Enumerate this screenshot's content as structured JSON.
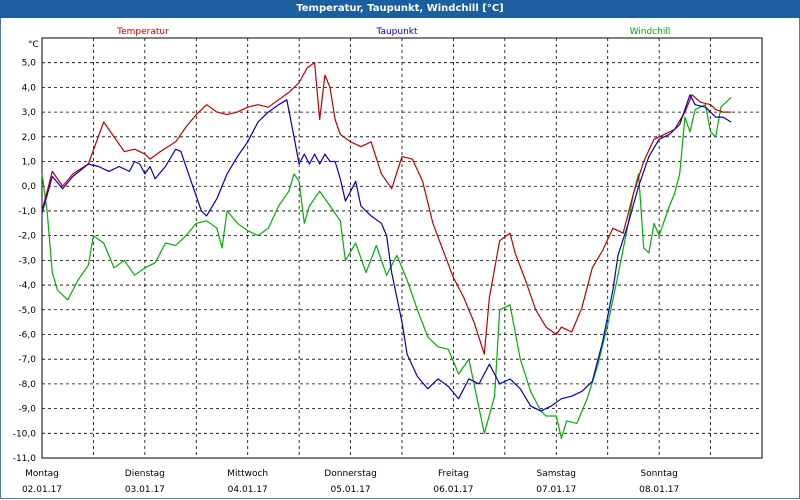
{
  "window": {
    "title": "Temperatur, Taupunkt, Windchill [°C]"
  },
  "colors": {
    "title_bar": "#1c5fa0",
    "temperatur": "#c00000",
    "taupunkt": "#0000c0",
    "windchill": "#00b000"
  },
  "chart_data": {
    "type": "line",
    "title": "Temperatur, Taupunkt, Windchill [°C]",
    "ylabel": "°C",
    "ylim": [
      -11,
      6
    ],
    "yticks": [
      5,
      4,
      3,
      2,
      1,
      0,
      -1,
      -2,
      -3,
      -4,
      -5,
      -6,
      -7,
      -8,
      -9,
      -10,
      -11
    ],
    "ytick_labels": [
      "5,0",
      "4,0",
      "3,0",
      "2,0",
      "1,0",
      "0,0",
      "-1,0",
      "-2,0",
      "-3,0",
      "-4,0",
      "-5,0",
      "-6,0",
      "-7,0",
      "-8,0",
      "-9,0",
      "-10,0",
      "-11,0"
    ],
    "xlim": [
      0,
      7
    ],
    "x_unit": "days since 02.01.17 00:00",
    "day_labels": [
      {
        "day": "Montag",
        "date": "02.01.17"
      },
      {
        "day": "Dienstag",
        "date": "03.01.17"
      },
      {
        "day": "Mittwoch",
        "date": "04.01.17"
      },
      {
        "day": "Donnerstag",
        "date": "05.01.17"
      },
      {
        "day": "Freitag",
        "date": "06.01.17"
      },
      {
        "day": "Samstag",
        "date": "07.01.17"
      },
      {
        "day": "Sonntag",
        "date": "08.01.17"
      }
    ],
    "grid": true,
    "series": [
      {
        "name": "Temperatur",
        "color": "#c00000",
        "points": [
          [
            0,
            -1
          ],
          [
            0.1,
            0.6
          ],
          [
            0.2,
            0
          ],
          [
            0.3,
            0.5
          ],
          [
            0.45,
            0.9
          ],
          [
            0.6,
            2.6
          ],
          [
            0.7,
            2
          ],
          [
            0.8,
            1.4
          ],
          [
            0.9,
            1.5
          ],
          [
            1,
            1.3
          ],
          [
            1.05,
            1.1
          ],
          [
            1.15,
            1.4
          ],
          [
            1.3,
            1.8
          ],
          [
            1.4,
            2.4
          ],
          [
            1.5,
            2.9
          ],
          [
            1.6,
            3.3
          ],
          [
            1.7,
            3.0
          ],
          [
            1.8,
            2.9
          ],
          [
            1.9,
            3.0
          ],
          [
            2,
            3.2
          ],
          [
            2.1,
            3.3
          ],
          [
            2.2,
            3.2
          ],
          [
            2.3,
            3.5
          ],
          [
            2.4,
            3.8
          ],
          [
            2.5,
            4.2
          ],
          [
            2.58,
            4.8
          ],
          [
            2.65,
            5.0
          ],
          [
            2.7,
            2.7
          ],
          [
            2.75,
            4.5
          ],
          [
            2.8,
            4.0
          ],
          [
            2.85,
            2.7
          ],
          [
            2.9,
            2.1
          ],
          [
            3.0,
            1.8
          ],
          [
            3.1,
            1.6
          ],
          [
            3.2,
            1.8
          ],
          [
            3.3,
            0.5
          ],
          [
            3.4,
            -0.1
          ],
          [
            3.5,
            1.2
          ],
          [
            3.6,
            1.1
          ],
          [
            3.7,
            0.2
          ],
          [
            3.8,
            -1.5
          ],
          [
            3.9,
            -2.6
          ],
          [
            4,
            -3.7
          ],
          [
            4.1,
            -4.5
          ],
          [
            4.2,
            -5.5
          ],
          [
            4.3,
            -6.8
          ],
          [
            4.35,
            -4.5
          ],
          [
            4.45,
            -2.2
          ],
          [
            4.55,
            -1.9
          ],
          [
            4.6,
            -2.7
          ],
          [
            4.7,
            -3.8
          ],
          [
            4.8,
            -5.0
          ],
          [
            4.9,
            -5.7
          ],
          [
            5,
            -6.0
          ],
          [
            5.05,
            -5.7
          ],
          [
            5.15,
            -5.9
          ],
          [
            5.25,
            -4.9
          ],
          [
            5.35,
            -3.3
          ],
          [
            5.45,
            -2.6
          ],
          [
            5.55,
            -1.7
          ],
          [
            5.65,
            -1.9
          ],
          [
            5.75,
            -0.3
          ],
          [
            5.85,
            1.0
          ],
          [
            5.95,
            1.9
          ],
          [
            6.05,
            2.1
          ],
          [
            6.15,
            2.3
          ],
          [
            6.25,
            3.0
          ],
          [
            6.32,
            3.7
          ],
          [
            6.4,
            3.4
          ],
          [
            6.5,
            3.3
          ],
          [
            6.55,
            3.1
          ],
          [
            6.62,
            3.0
          ],
          [
            6.7,
            3.0
          ]
        ]
      },
      {
        "name": "Taupunkt",
        "color": "#0000c0",
        "points": [
          [
            0,
            -1.1
          ],
          [
            0.1,
            0.4
          ],
          [
            0.2,
            -0.1
          ],
          [
            0.3,
            0.4
          ],
          [
            0.45,
            0.9
          ],
          [
            0.55,
            0.8
          ],
          [
            0.65,
            0.6
          ],
          [
            0.75,
            0.8
          ],
          [
            0.85,
            0.6
          ],
          [
            0.9,
            1
          ],
          [
            0.95,
            0.9
          ],
          [
            1,
            0.5
          ],
          [
            1.05,
            0.8
          ],
          [
            1.1,
            0.3
          ],
          [
            1.2,
            0.8
          ],
          [
            1.3,
            1.5
          ],
          [
            1.35,
            1.4
          ],
          [
            1.45,
            0.2
          ],
          [
            1.55,
            -1.0
          ],
          [
            1.6,
            -1.2
          ],
          [
            1.7,
            -0.5
          ],
          [
            1.8,
            0.5
          ],
          [
            1.9,
            1.2
          ],
          [
            2,
            1.8
          ],
          [
            2.1,
            2.6
          ],
          [
            2.2,
            3.0
          ],
          [
            2.3,
            3.3
          ],
          [
            2.38,
            3.5
          ],
          [
            2.45,
            2.0
          ],
          [
            2.5,
            0.9
          ],
          [
            2.55,
            1.3
          ],
          [
            2.6,
            0.9
          ],
          [
            2.65,
            1.3
          ],
          [
            2.7,
            0.9
          ],
          [
            2.75,
            1.3
          ],
          [
            2.8,
            1.0
          ],
          [
            2.85,
            1.0
          ],
          [
            2.9,
            0.3
          ],
          [
            2.95,
            -0.6
          ],
          [
            3.0,
            -0.2
          ],
          [
            3.05,
            0.2
          ],
          [
            3.1,
            -0.8
          ],
          [
            3.2,
            -1.2
          ],
          [
            3.3,
            -1.5
          ],
          [
            3.35,
            -2.0
          ],
          [
            3.4,
            -3.5
          ],
          [
            3.5,
            -5.5
          ],
          [
            3.55,
            -6.8
          ],
          [
            3.65,
            -7.7
          ],
          [
            3.75,
            -8.2
          ],
          [
            3.85,
            -7.8
          ],
          [
            3.95,
            -8.1
          ],
          [
            4.05,
            -8.6
          ],
          [
            4.15,
            -7.8
          ],
          [
            4.25,
            -8.0
          ],
          [
            4.35,
            -7.2
          ],
          [
            4.45,
            -8.0
          ],
          [
            4.55,
            -7.8
          ],
          [
            4.65,
            -8.2
          ],
          [
            4.75,
            -8.9
          ],
          [
            4.85,
            -9.1
          ],
          [
            4.95,
            -8.9
          ],
          [
            5.05,
            -8.6
          ],
          [
            5.15,
            -8.5
          ],
          [
            5.25,
            -8.3
          ],
          [
            5.35,
            -7.9
          ],
          [
            5.45,
            -6.3
          ],
          [
            5.55,
            -4.2
          ],
          [
            5.6,
            -2.8
          ],
          [
            5.7,
            -1.5
          ],
          [
            5.8,
            0.0
          ],
          [
            5.9,
            1.2
          ],
          [
            6,
            1.9
          ],
          [
            6.1,
            2.1
          ],
          [
            6.2,
            2.5
          ],
          [
            6.3,
            3.7
          ],
          [
            6.35,
            3.3
          ],
          [
            6.45,
            3.2
          ],
          [
            6.55,
            2.8
          ],
          [
            6.62,
            2.8
          ],
          [
            6.7,
            2.6
          ]
        ]
      },
      {
        "name": "Windchill",
        "color": "#00b000",
        "points": [
          [
            0,
            0.5
          ],
          [
            0.05,
            -1.0
          ],
          [
            0.1,
            -3.5
          ],
          [
            0.15,
            -4.2
          ],
          [
            0.25,
            -4.6
          ],
          [
            0.35,
            -3.8
          ],
          [
            0.45,
            -3.2
          ],
          [
            0.5,
            -2.0
          ],
          [
            0.6,
            -2.3
          ],
          [
            0.7,
            -3.3
          ],
          [
            0.8,
            -3.0
          ],
          [
            0.9,
            -3.6
          ],
          [
            1.0,
            -3.3
          ],
          [
            1.1,
            -3.1
          ],
          [
            1.2,
            -2.3
          ],
          [
            1.3,
            -2.4
          ],
          [
            1.4,
            -2.0
          ],
          [
            1.5,
            -1.5
          ],
          [
            1.6,
            -1.4
          ],
          [
            1.7,
            -1.7
          ],
          [
            1.75,
            -2.5
          ],
          [
            1.8,
            -1.0
          ],
          [
            1.9,
            -1.5
          ],
          [
            2.0,
            -1.8
          ],
          [
            2.1,
            -2.0
          ],
          [
            2.2,
            -1.7
          ],
          [
            2.3,
            -0.8
          ],
          [
            2.4,
            -0.2
          ],
          [
            2.45,
            0.5
          ],
          [
            2.5,
            0.2
          ],
          [
            2.55,
            -1.5
          ],
          [
            2.6,
            -0.8
          ],
          [
            2.7,
            -0.2
          ],
          [
            2.8,
            -0.8
          ],
          [
            2.9,
            -1.4
          ],
          [
            2.95,
            -3.0
          ],
          [
            3.05,
            -2.3
          ],
          [
            3.15,
            -3.5
          ],
          [
            3.25,
            -2.4
          ],
          [
            3.35,
            -3.6
          ],
          [
            3.45,
            -2.8
          ],
          [
            3.55,
            -3.8
          ],
          [
            3.65,
            -5.0
          ],
          [
            3.75,
            -6.1
          ],
          [
            3.85,
            -6.5
          ],
          [
            3.95,
            -6.6
          ],
          [
            4.05,
            -7.6
          ],
          [
            4.15,
            -7.0
          ],
          [
            4.2,
            -8.0
          ],
          [
            4.3,
            -10.0
          ],
          [
            4.4,
            -8.5
          ],
          [
            4.45,
            -5.0
          ],
          [
            4.55,
            -4.8
          ],
          [
            4.65,
            -7.0
          ],
          [
            4.75,
            -8.3
          ],
          [
            4.85,
            -9.1
          ],
          [
            4.9,
            -9.3
          ],
          [
            5.0,
            -9.3
          ],
          [
            5.05,
            -10.2
          ],
          [
            5.1,
            -9.5
          ],
          [
            5.2,
            -9.6
          ],
          [
            5.3,
            -8.6
          ],
          [
            5.4,
            -7.3
          ],
          [
            5.5,
            -5.6
          ],
          [
            5.6,
            -3.6
          ],
          [
            5.7,
            -1.5
          ],
          [
            5.75,
            -0.3
          ],
          [
            5.8,
            0.5
          ],
          [
            5.85,
            -2.5
          ],
          [
            5.9,
            -2.7
          ],
          [
            5.95,
            -1.5
          ],
          [
            6.0,
            -2.0
          ],
          [
            6.1,
            -0.8
          ],
          [
            6.15,
            -0.3
          ],
          [
            6.2,
            0.5
          ],
          [
            6.25,
            2.8
          ],
          [
            6.3,
            2.2
          ],
          [
            6.35,
            3.1
          ],
          [
            6.45,
            3.3
          ],
          [
            6.5,
            2.2
          ],
          [
            6.55,
            2.0
          ],
          [
            6.6,
            3.2
          ],
          [
            6.7,
            3.6
          ]
        ]
      }
    ]
  }
}
